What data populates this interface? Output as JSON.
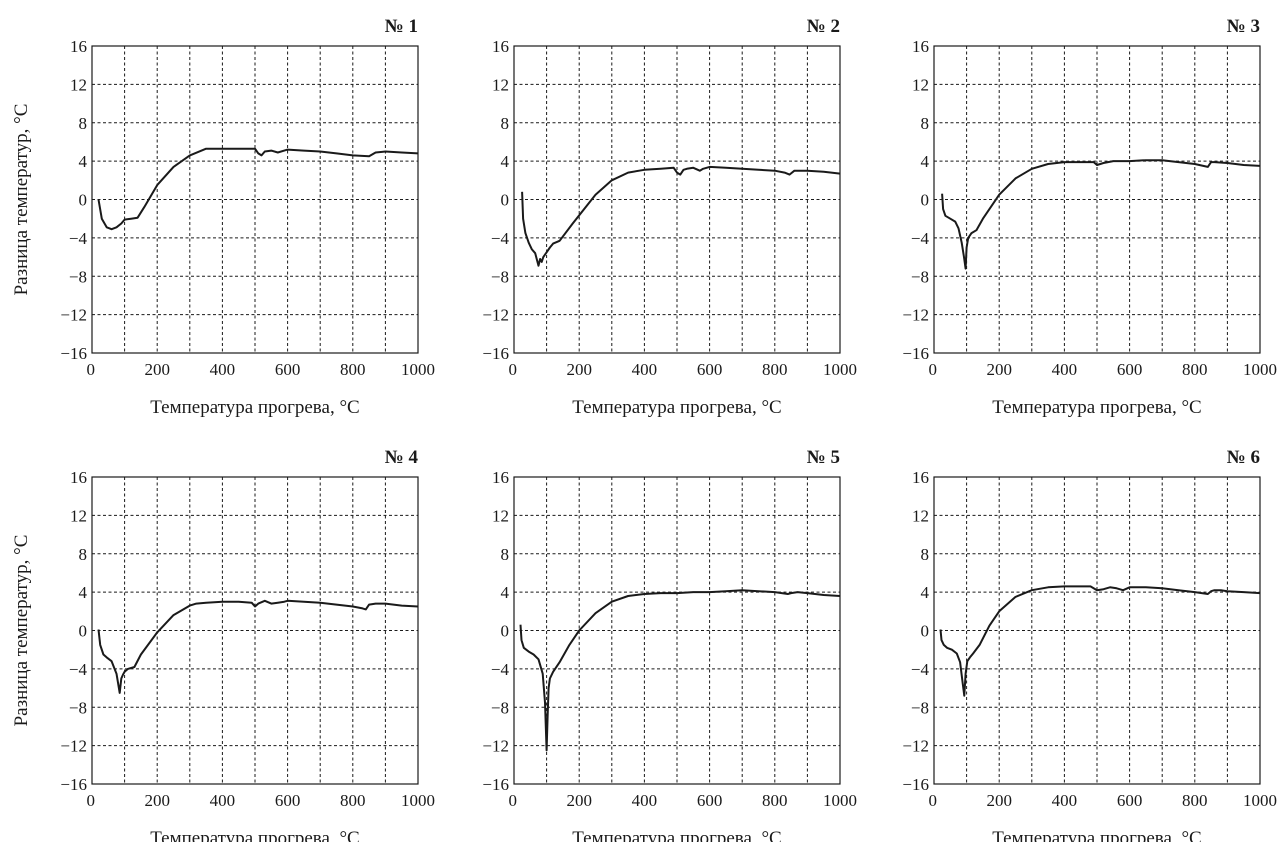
{
  "chart_data": [
    {
      "type": "line",
      "title": "№ 1",
      "xlabel": "Температура прогрева, °C",
      "ylabel": "Разница температур, °C",
      "xlim": [
        0,
        1000
      ],
      "ylim": [
        -16,
        16
      ],
      "xticks": [
        "0",
        "200",
        "400",
        "600",
        "800",
        "1000"
      ],
      "yticks": [
        "16",
        "12",
        "8",
        "4",
        "0",
        "−4",
        "−8",
        "−12",
        "−16"
      ],
      "grid": true,
      "series": [
        {
          "x": [
            20,
            30,
            45,
            60,
            75,
            90,
            100,
            120,
            140,
            160,
            200,
            250,
            300,
            350,
            400,
            450,
            500,
            510,
            520,
            530,
            550,
            570,
            590,
            600,
            650,
            700,
            750,
            800,
            850,
            870,
            900,
            950,
            1000
          ],
          "y": [
            0,
            -2,
            -2.9,
            -3.1,
            -2.9,
            -2.5,
            -2.1,
            -2.0,
            -1.9,
            -0.8,
            1.5,
            3.4,
            4.6,
            5.3,
            5.3,
            5.3,
            5.3,
            4.8,
            4.6,
            5.0,
            5.1,
            4.9,
            5.1,
            5.2,
            5.1,
            5.0,
            4.8,
            4.6,
            4.5,
            4.9,
            5.0,
            4.9,
            4.8
          ]
        }
      ]
    },
    {
      "type": "line",
      "title": "№ 2",
      "xlabel": "Температура прогрева, °C",
      "ylabel": "",
      "xlim": [
        0,
        1000
      ],
      "ylim": [
        -16,
        16
      ],
      "xticks": [
        "0",
        "200",
        "400",
        "600",
        "800",
        "1000"
      ],
      "yticks": [
        "16",
        "12",
        "8",
        "4",
        "0",
        "−4",
        "−8",
        "−12",
        "−16"
      ],
      "grid": true,
      "series": [
        {
          "x": [
            25,
            28,
            35,
            45,
            55,
            65,
            75,
            80,
            85,
            90,
            100,
            110,
            120,
            140,
            180,
            250,
            300,
            350,
            400,
            450,
            490,
            500,
            510,
            520,
            530,
            550,
            570,
            580,
            600,
            650,
            700,
            750,
            800,
            830,
            845,
            860,
            900,
            950,
            1000
          ],
          "y": [
            0.8,
            -2,
            -3.5,
            -4.5,
            -5.2,
            -5.6,
            -6.9,
            -6.2,
            -6.5,
            -6.0,
            -5.5,
            -5.0,
            -4.6,
            -4.3,
            -2.5,
            0.5,
            2.0,
            2.8,
            3.1,
            3.2,
            3.3,
            2.8,
            2.6,
            3.1,
            3.2,
            3.3,
            3.0,
            3.2,
            3.4,
            3.3,
            3.2,
            3.1,
            3.0,
            2.8,
            2.6,
            3.0,
            3.0,
            2.9,
            2.7
          ]
        }
      ]
    },
    {
      "type": "line",
      "title": "№ 3",
      "xlabel": "Температура прогрева, °C",
      "ylabel": "",
      "xlim": [
        0,
        1000
      ],
      "ylim": [
        -16,
        16
      ],
      "xticks": [
        "0",
        "200",
        "400",
        "600",
        "800",
        "1000"
      ],
      "yticks": [
        "16",
        "12",
        "8",
        "4",
        "0",
        "−4",
        "−8",
        "−12",
        "−16"
      ],
      "grid": true,
      "series": [
        {
          "x": [
            25,
            28,
            35,
            50,
            65,
            75,
            85,
            92,
            97,
            100,
            105,
            115,
            130,
            150,
            200,
            250,
            300,
            350,
            400,
            450,
            490,
            500,
            520,
            550,
            600,
            650,
            700,
            750,
            800,
            840,
            850,
            860,
            900,
            950,
            1000
          ],
          "y": [
            0.6,
            -1.0,
            -1.7,
            -2.0,
            -2.3,
            -3.0,
            -4.5,
            -6.0,
            -7.2,
            -5.0,
            -4.0,
            -3.5,
            -3.2,
            -2.0,
            0.5,
            2.2,
            3.2,
            3.7,
            3.9,
            3.9,
            3.9,
            3.6,
            3.8,
            4.0,
            4.0,
            4.1,
            4.1,
            3.9,
            3.7,
            3.4,
            3.9,
            3.9,
            3.8,
            3.6,
            3.5
          ]
        }
      ]
    },
    {
      "type": "line",
      "title": "№ 4",
      "xlabel": "Температура прогрева, °C",
      "ylabel": "Разница температур, °C",
      "xlim": [
        0,
        1000
      ],
      "ylim": [
        -16,
        16
      ],
      "xticks": [
        "0",
        "200",
        "400",
        "600",
        "800",
        "1000"
      ],
      "yticks": [
        "16",
        "12",
        "8",
        "4",
        "0",
        "−4",
        "−8",
        "−12",
        "−16"
      ],
      "grid": true,
      "series": [
        {
          "x": [
            20,
            25,
            35,
            45,
            60,
            75,
            85,
            90,
            95,
            100,
            110,
            130,
            150,
            200,
            250,
            300,
            320,
            350,
            400,
            450,
            490,
            500,
            510,
            530,
            550,
            570,
            590,
            600,
            650,
            700,
            750,
            800,
            830,
            840,
            850,
            870,
            900,
            950,
            1000
          ],
          "y": [
            0.1,
            -1.5,
            -2.5,
            -2.8,
            -3.2,
            -4.5,
            -6.5,
            -5.0,
            -4.6,
            -4.3,
            -4.0,
            -3.8,
            -2.5,
            -0.2,
            1.6,
            2.6,
            2.8,
            2.9,
            3.0,
            3.0,
            2.9,
            2.5,
            2.8,
            3.1,
            2.8,
            2.9,
            3.0,
            3.1,
            3.0,
            2.9,
            2.7,
            2.5,
            2.3,
            2.2,
            2.7,
            2.8,
            2.8,
            2.6,
            2.5
          ]
        }
      ]
    },
    {
      "type": "line",
      "title": "№ 5",
      "xlabel": "Температура прогрева, °C",
      "ylabel": "",
      "xlim": [
        0,
        1000
      ],
      "ylim": [
        -16,
        16
      ],
      "xticks": [
        "0",
        "200",
        "400",
        "600",
        "800",
        "1000"
      ],
      "yticks": [
        "16",
        "12",
        "8",
        "4",
        "0",
        "−4",
        "−8",
        "−12",
        "−16"
      ],
      "grid": true,
      "series": [
        {
          "x": [
            20,
            23,
            30,
            45,
            60,
            75,
            88,
            95,
            100,
            103,
            106,
            110,
            120,
            140,
            170,
            200,
            250,
            300,
            350,
            400,
            450,
            500,
            550,
            600,
            650,
            700,
            750,
            800,
            840,
            850,
            870,
            900,
            950,
            1000
          ],
          "y": [
            0.6,
            -1.0,
            -1.8,
            -2.2,
            -2.5,
            -3.0,
            -4.5,
            -7.5,
            -12.5,
            -9.0,
            -6.0,
            -5.0,
            -4.3,
            -3.3,
            -1.5,
            0,
            1.8,
            3.0,
            3.6,
            3.8,
            3.9,
            3.9,
            4.0,
            4.0,
            4.1,
            4.2,
            4.1,
            4.0,
            3.8,
            3.9,
            4.0,
            3.9,
            3.7,
            3.6
          ]
        }
      ]
    },
    {
      "type": "line",
      "title": "№ 6",
      "xlabel": "Температура прогрева, °C",
      "ylabel": "",
      "xlim": [
        0,
        1000
      ],
      "ylim": [
        -16,
        16
      ],
      "xticks": [
        "0",
        "200",
        "400",
        "600",
        "800",
        "1000"
      ],
      "yticks": [
        "16",
        "12",
        "8",
        "4",
        "0",
        "−4",
        "−8",
        "−12",
        "−16"
      ],
      "grid": true,
      "series": [
        {
          "x": [
            20,
            23,
            30,
            40,
            55,
            70,
            80,
            88,
            93,
            97,
            102,
            110,
            120,
            140,
            170,
            200,
            250,
            300,
            350,
            400,
            450,
            480,
            500,
            520,
            540,
            560,
            580,
            600,
            650,
            700,
            750,
            800,
            840,
            850,
            860,
            880,
            900,
            950,
            1000
          ],
          "y": [
            0.1,
            -1.0,
            -1.5,
            -1.8,
            -2.0,
            -2.4,
            -3.3,
            -5.5,
            -6.8,
            -4.5,
            -3.2,
            -2.8,
            -2.4,
            -1.5,
            0.5,
            2.0,
            3.5,
            4.2,
            4.5,
            4.6,
            4.6,
            4.6,
            4.2,
            4.3,
            4.5,
            4.4,
            4.2,
            4.5,
            4.5,
            4.4,
            4.2,
            4.0,
            3.8,
            4.1,
            4.2,
            4.2,
            4.1,
            4.0,
            3.9
          ]
        }
      ]
    }
  ]
}
